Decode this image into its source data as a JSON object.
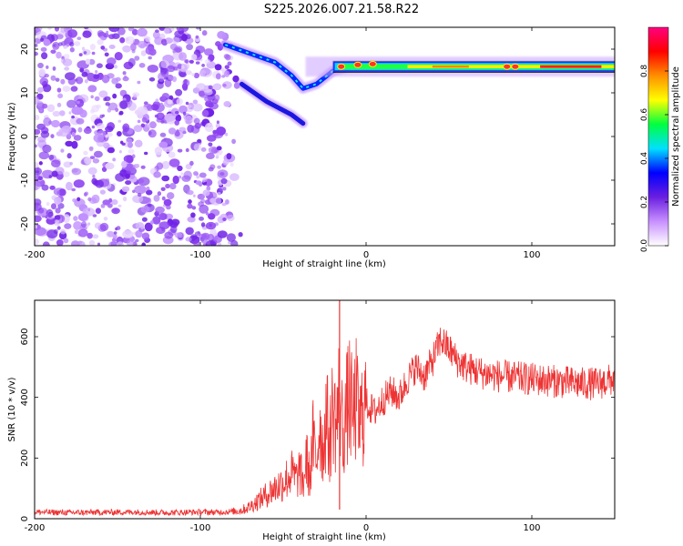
{
  "title": "S225.2026.007.21.58.R22",
  "chart_data": [
    {
      "type": "heatmap",
      "name": "spectrogram",
      "xlabel": "Height of straight line (km)",
      "ylabel": "Frequency (Hz)",
      "xlim": [
        -200,
        150
      ],
      "ylim": [
        -25,
        25
      ],
      "xticks": [
        -200,
        -100,
        0,
        100
      ],
      "xtick_labels": [
        "-200",
        "-100",
        "0",
        "100"
      ],
      "yticks": [
        -20,
        -10,
        0,
        10,
        20
      ],
      "ytick_labels": [
        "-20",
        "-10",
        "0",
        "10",
        "20"
      ],
      "features": {
        "noise_region_x": [
          -200,
          -80
        ],
        "tone_frequency_hz": 16,
        "tone_start_x": -20,
        "lower_branch": [
          [
            -75,
            12
          ],
          [
            -60,
            8
          ],
          [
            -45,
            5
          ],
          [
            -38,
            3
          ]
        ],
        "upper_branch": [
          [
            -85,
            21
          ],
          [
            -70,
            19
          ],
          [
            -55,
            17
          ],
          [
            -45,
            14
          ],
          [
            -38,
            11
          ],
          [
            -30,
            12
          ],
          [
            -20,
            15
          ],
          [
            -10,
            16
          ],
          [
            0,
            16
          ]
        ]
      },
      "colorbar": {
        "label": "Normalized spectral amplitude",
        "range": [
          0,
          1
        ],
        "ticks": [
          0.0,
          0.2,
          0.4,
          0.6,
          0.8
        ],
        "tick_labels": [
          "0.0",
          "0.2",
          "0.4",
          "0.6",
          "0.8"
        ],
        "stops": [
          "#ffffff",
          "#c890ff",
          "#6a1fe0",
          "#0000ff",
          "#00e0ff",
          "#00ff40",
          "#ffff00",
          "#ff9000",
          "#ff0000",
          "#ff0080"
        ]
      }
    },
    {
      "type": "line",
      "name": "snr",
      "xlabel": "Height of straight line (km)",
      "ylabel": "SNR (10 * v/v)",
      "xlim": [
        -200,
        150
      ],
      "ylim": [
        0,
        720
      ],
      "xticks": [
        -200,
        -100,
        0,
        100
      ],
      "xtick_labels": [
        "-200",
        "-100",
        "0",
        "100"
      ],
      "yticks": [
        0,
        200,
        400,
        600
      ],
      "ytick_labels": [
        "0",
        "200",
        "400",
        "600"
      ],
      "color": "#ee3333",
      "x": [
        -200,
        -180,
        -160,
        -140,
        -120,
        -100,
        -90,
        -80,
        -75,
        -70,
        -65,
        -60,
        -55,
        -50,
        -45,
        -42,
        -40,
        -38,
        -36,
        -34,
        -32,
        -30,
        -28,
        -26,
        -24,
        -22,
        -20,
        -18,
        -16,
        -14,
        -12,
        -10,
        -8,
        -6,
        -4,
        -2,
        0,
        5,
        10,
        15,
        20,
        25,
        30,
        35,
        40,
        45,
        50,
        55,
        60,
        70,
        80,
        90,
        100,
        110,
        120,
        130,
        140,
        150
      ],
      "values": [
        22,
        20,
        21,
        22,
        20,
        22,
        21,
        24,
        28,
        40,
        60,
        80,
        100,
        120,
        150,
        130,
        160,
        110,
        200,
        130,
        260,
        180,
        330,
        220,
        350,
        240,
        380,
        300,
        420,
        280,
        350,
        400,
        330,
        390,
        300,
        360,
        380,
        350,
        390,
        420,
        400,
        460,
        500,
        470,
        520,
        590,
        560,
        520,
        500,
        480,
        470,
        465,
        460,
        455,
        450,
        445,
        445,
        460
      ]
    }
  ]
}
